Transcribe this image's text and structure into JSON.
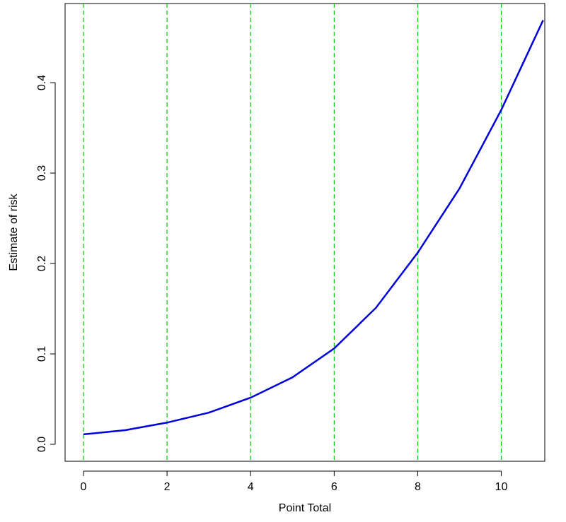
{
  "chart_data": {
    "type": "line",
    "x_label": "Point Total",
    "y_label": "Estimate of risk",
    "x": [
      0,
      1,
      2,
      3,
      4,
      5,
      6,
      7,
      8,
      9,
      10,
      11
    ],
    "values": [
      0.011,
      0.0156,
      0.024,
      0.035,
      0.0516,
      0.074,
      0.106,
      0.151,
      0.212,
      0.283,
      0.37,
      0.469
    ],
    "color": "#0000dd",
    "xlim": [
      -0.44,
      11.04
    ],
    "ylim": [
      -0.01875,
      0.4875
    ],
    "xticks": [
      0,
      2,
      4,
      6,
      8,
      10
    ],
    "yticks": [
      {
        "value": 0,
        "label": "0.0"
      },
      0.1,
      0.2,
      0.3,
      0.4
    ],
    "grid": true,
    "grid_color": "#00cc00"
  }
}
